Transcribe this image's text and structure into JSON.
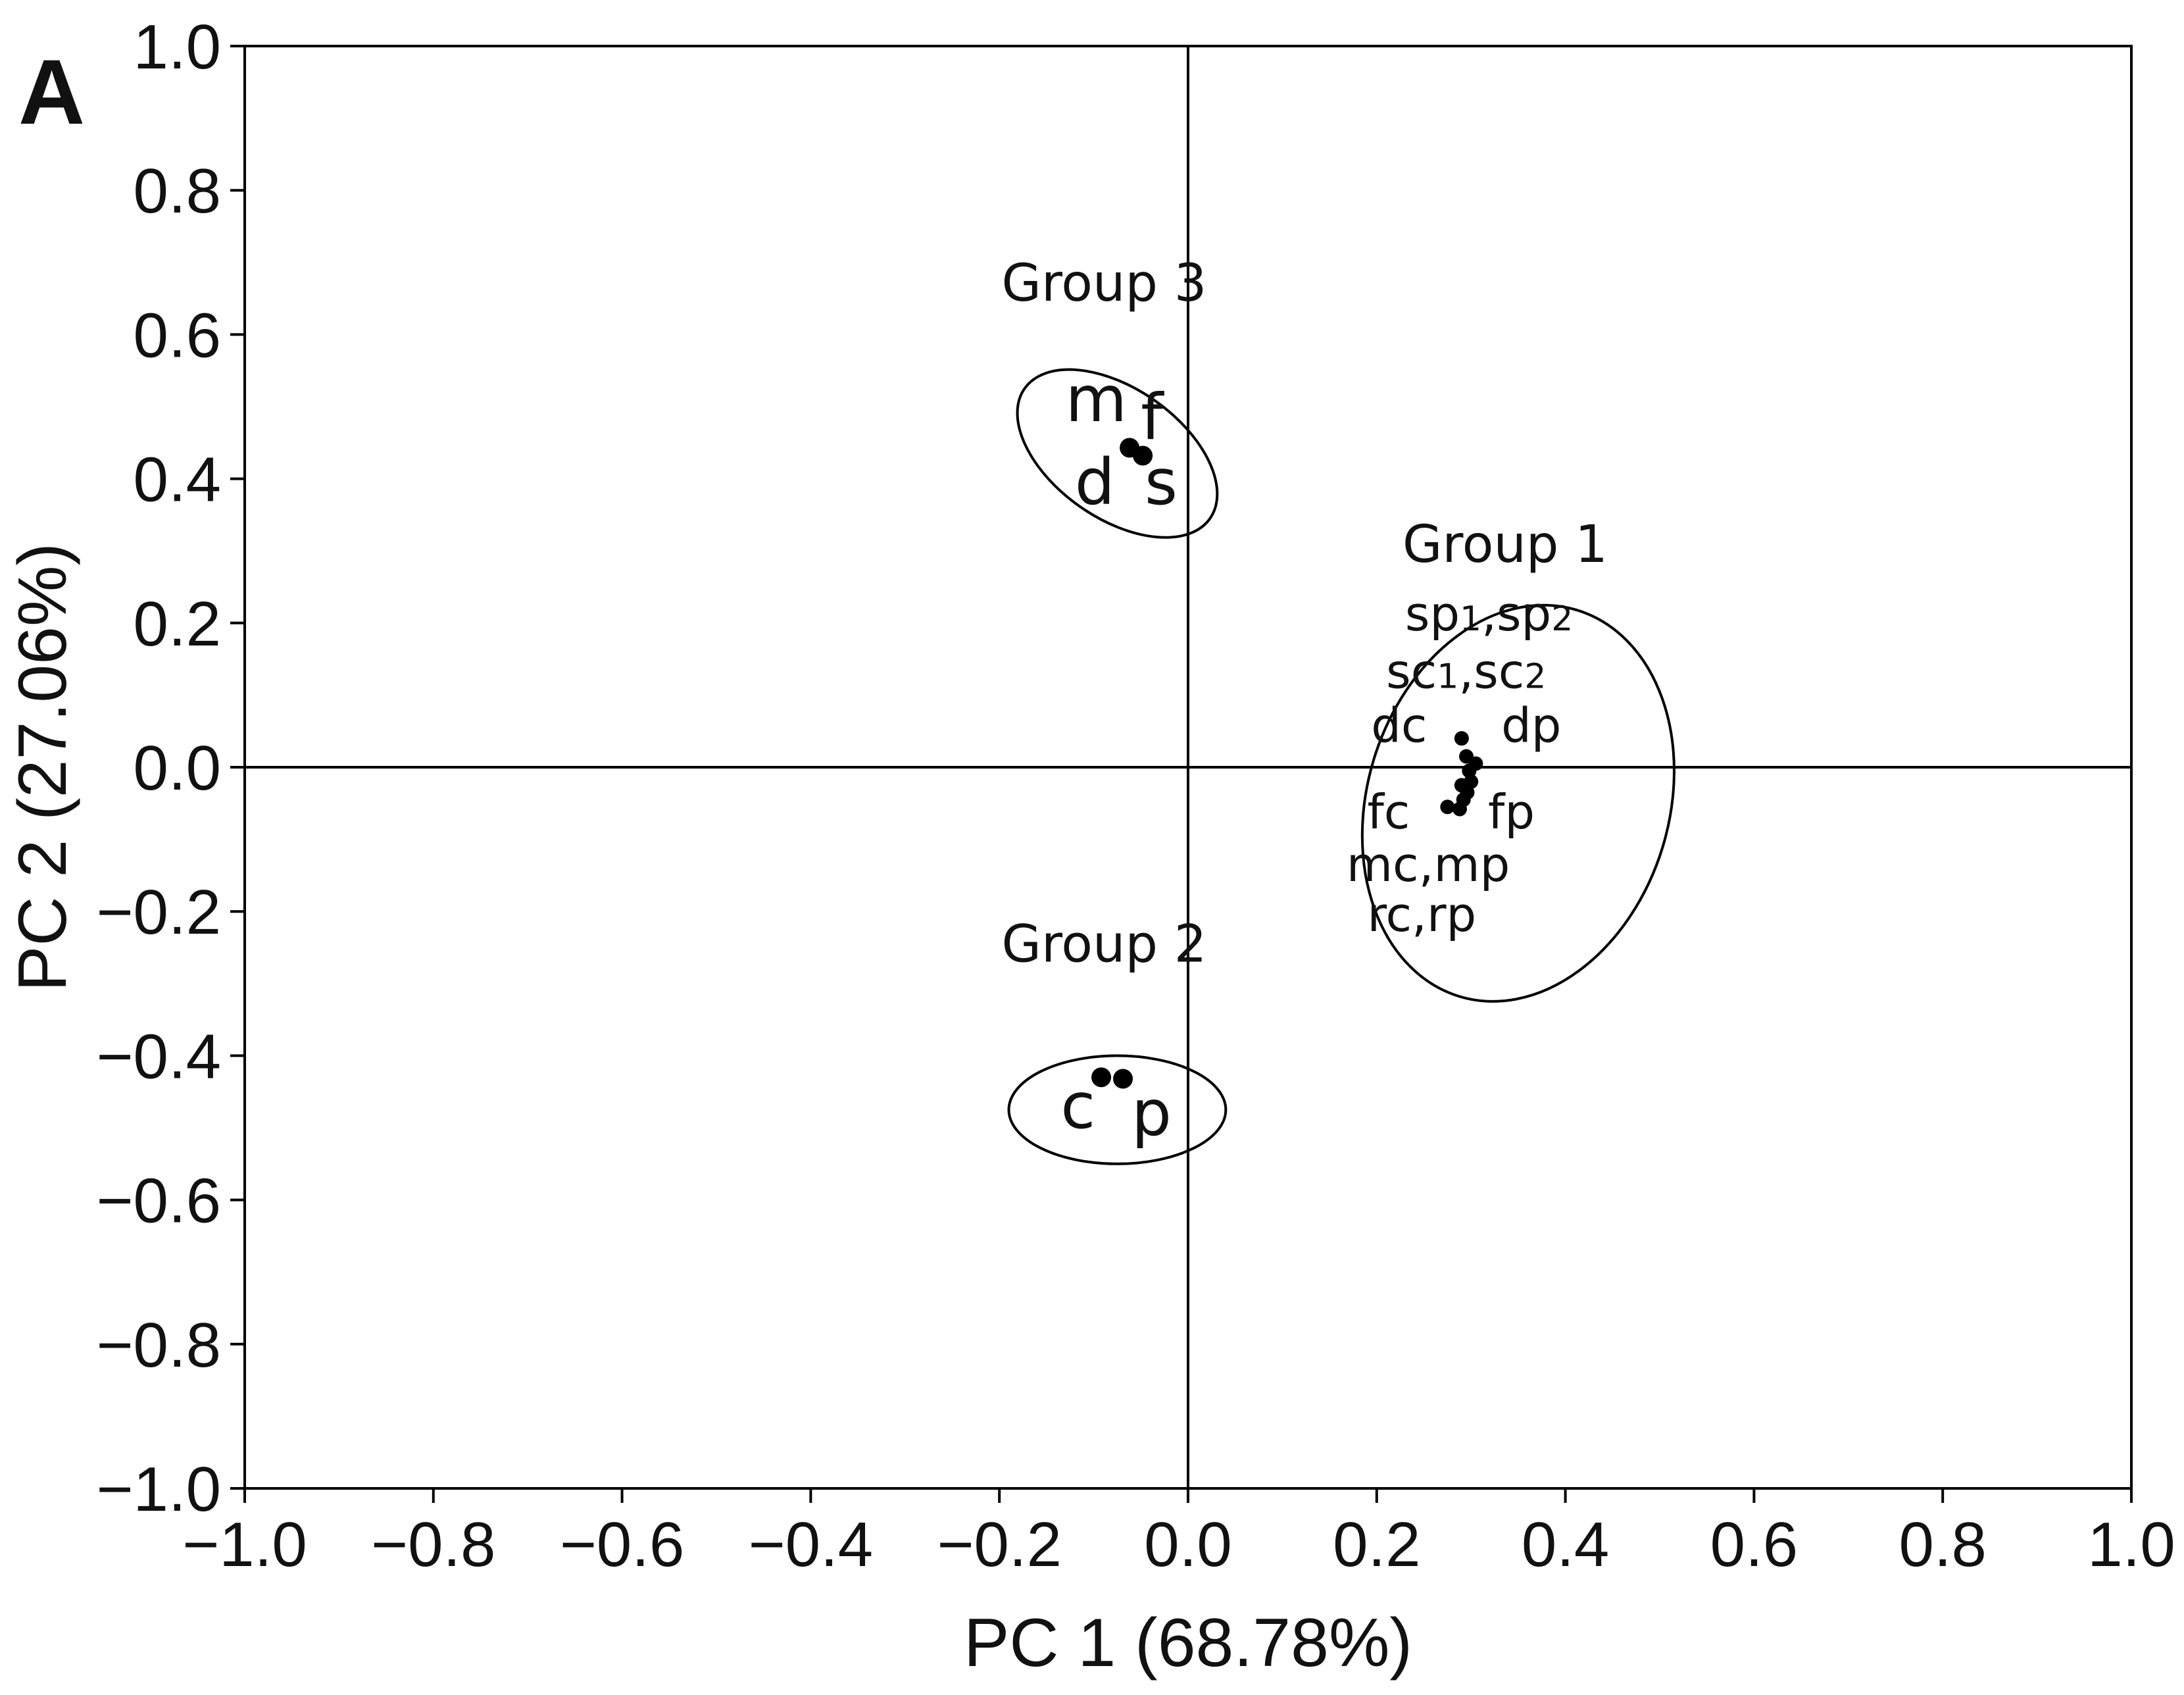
{
  "panel_label": "A",
  "chart_data": {
    "type": "scatter",
    "title": "",
    "xlabel": "PC 1 (68.78%)",
    "ylabel": "PC 2 (27.06%)",
    "xlim": [
      -1.0,
      1.0
    ],
    "ylim": [
      -1.0,
      1.0
    ],
    "x_ticks": [
      "−1.0",
      "−0.8",
      "−0.6",
      "−0.4",
      "−0.2",
      "0.0",
      "0.2",
      "0.4",
      "0.6",
      "0.8",
      "1.0"
    ],
    "y_ticks": [
      "1.0",
      "0.8",
      "0.6",
      "0.4",
      "0.2",
      "0.0",
      "−0.2",
      "−0.4",
      "−0.6",
      "−0.8",
      "−1.0"
    ],
    "grid": false,
    "zero_lines": true,
    "groups": [
      {
        "name": "Group 1",
        "ellipse": {
          "cx": 0.35,
          "cy": -0.05,
          "rx": 0.16,
          "ry": 0.28,
          "rotation_deg": 17
        },
        "labels": [
          {
            "parts": [
              [
                "sp",
                false
              ],
              [
                "1",
                true
              ],
              [
                ",sp",
                false
              ],
              [
                "2",
                true
              ]
            ],
            "x": 0.23,
            "y": 0.19
          },
          {
            "parts": [
              [
                "sc",
                false
              ],
              [
                "1",
                true
              ],
              [
                ",sc",
                false
              ],
              [
                "2",
                true
              ]
            ],
            "x": 0.21,
            "y": 0.11
          },
          {
            "parts": [
              [
                "dc",
                false
              ]
            ],
            "x": 0.194,
            "y": 0.035
          },
          {
            "parts": [
              [
                "dp",
                false
              ]
            ],
            "x": 0.332,
            "y": 0.035
          },
          {
            "parts": [
              [
                "fc",
                false
              ]
            ],
            "x": 0.19,
            "y": -0.085
          },
          {
            "parts": [
              [
                "fp",
                false
              ]
            ],
            "x": 0.318,
            "y": -0.085
          },
          {
            "parts": [
              [
                "mc,mp",
                false
              ]
            ],
            "x": 0.168,
            "y": -0.158
          },
          {
            "parts": [
              [
                "rc,rp",
                false
              ]
            ],
            "x": 0.19,
            "y": -0.227
          }
        ],
        "points": [
          {
            "x": 0.29,
            "y": 0.04
          },
          {
            "x": 0.295,
            "y": 0.015
          },
          {
            "x": 0.305,
            "y": 0.005
          },
          {
            "x": 0.298,
            "y": -0.005
          },
          {
            "x": 0.3,
            "y": -0.02
          },
          {
            "x": 0.29,
            "y": -0.025
          },
          {
            "x": 0.296,
            "y": -0.035
          },
          {
            "x": 0.292,
            "y": -0.045
          },
          {
            "x": 0.288,
            "y": -0.058
          },
          {
            "x": 0.275,
            "y": -0.055
          }
        ]
      },
      {
        "name": "Group 2",
        "ellipse": {
          "cx": -0.075,
          "cy": -0.475,
          "rx": 0.115,
          "ry": 0.075,
          "rotation_deg": 0
        },
        "labels": [
          {
            "parts": [
              [
                "c",
                false
              ]
            ],
            "x": -0.135,
            "y": -0.5
          },
          {
            "parts": [
              [
                "p",
                false
              ]
            ],
            "x": -0.06,
            "y": -0.51
          }
        ],
        "points": [
          {
            "x": -0.092,
            "y": -0.43
          },
          {
            "x": -0.069,
            "y": -0.432
          }
        ]
      },
      {
        "name": "Group 3",
        "ellipse": {
          "cx": -0.075,
          "cy": 0.435,
          "rx": 0.12,
          "ry": 0.09,
          "rotation_deg": 35
        },
        "labels": [
          {
            "parts": [
              [
                "m",
                false
              ]
            ],
            "x": -0.13,
            "y": 0.48
          },
          {
            "parts": [
              [
                "f",
                false
              ]
            ],
            "x": -0.05,
            "y": 0.455
          },
          {
            "parts": [
              [
                "d",
                false
              ]
            ],
            "x": -0.12,
            "y": 0.365
          },
          {
            "parts": [
              [
                "s",
                false
              ]
            ],
            "x": -0.046,
            "y": 0.365
          }
        ],
        "points": [
          {
            "x": -0.062,
            "y": 0.443
          },
          {
            "x": -0.048,
            "y": 0.432
          }
        ]
      }
    ]
  }
}
